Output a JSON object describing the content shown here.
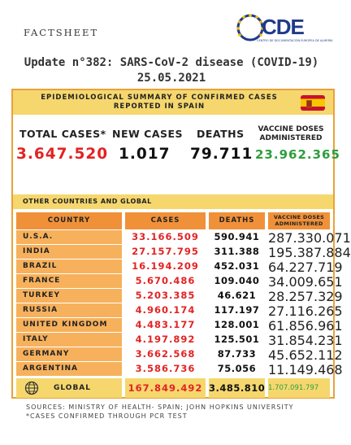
{
  "header": {
    "factsheet": "FACTSHEET",
    "logo_text": "CDE",
    "logo_subtitle": "CENTRO DE DOCUMENTACIÓN EUROPEA DE ALMERÍA",
    "title": "Update n°382: SARS-CoV-2 disease (COVID-19) 25.05.2021"
  },
  "summary": {
    "banner": "EPIDEMIOLOGICAL SUMMARY OF CONFIRMED CASES REPORTED IN SPAIN",
    "total_label": "TOTAL CASES*",
    "total_value": "3.647.520",
    "new_label": "NEW CASES",
    "new_value": "1.017",
    "deaths_label": "DEATHS",
    "deaths_value": "79.711",
    "vaccine_label": "VACCINE DOSES ADMINISTERED",
    "vaccine_value": "23.962.365"
  },
  "table": {
    "section_title": "OTHER COUNTRIES AND GLOBAL",
    "headers": {
      "country": "COUNTRY",
      "cases": "CASES",
      "deaths": "DEATHS",
      "vaccine": "VACCINE DOSES ADMINISTERED"
    },
    "rows": [
      {
        "country": "U.S.A.",
        "cases": "33.166.509",
        "deaths": "590.941",
        "vaccine": "287.330.071"
      },
      {
        "country": "INDIA",
        "cases": "27.157.795",
        "deaths": "311.388",
        "vaccine": "195.387.884"
      },
      {
        "country": "BRAZIL",
        "cases": "16.194.209",
        "deaths": "452.031",
        "vaccine": "64.227.719"
      },
      {
        "country": "FRANCE",
        "cases": "5.670.486",
        "deaths": "109.040",
        "vaccine": "34.009.651"
      },
      {
        "country": "TURKEY",
        "cases": "5.203.385",
        "deaths": "46.621",
        "vaccine": "28.257.329"
      },
      {
        "country": "RUSSIA",
        "cases": "4.960.174",
        "deaths": "117.197",
        "vaccine": "27.116.265"
      },
      {
        "country": "UNITED KINGDOM",
        "cases": "4.483.177",
        "deaths": "128.001",
        "vaccine": "61.856.961"
      },
      {
        "country": "ITALY",
        "cases": "4.197.892",
        "deaths": "125.501",
        "vaccine": "31.854.231"
      },
      {
        "country": "GERMANY",
        "cases": "3.662.568",
        "deaths": "87.733",
        "vaccine": "45.652.112"
      },
      {
        "country": "ARGENTINA",
        "cases": "3.586.736",
        "deaths": "75.056",
        "vaccine": "11.149.468"
      }
    ],
    "global": {
      "country": "GLOBAL",
      "cases": "167.849.492",
      "deaths": "3.485.810",
      "vaccine": "1.707.091.797"
    }
  },
  "footer": {
    "sources": "SOURCES: MINISTRY OF HEALTH- SPAIN; JOHN HOPKINS UNIVERSITY",
    "note": "*CASES CONFIRMED THROUGH PCR TEST"
  },
  "colors": {
    "accent_orange": "#f0913a",
    "banner_yellow": "#f5d76e",
    "cases_red": "#e32323",
    "vaccine_green": "#2e9e3e"
  }
}
